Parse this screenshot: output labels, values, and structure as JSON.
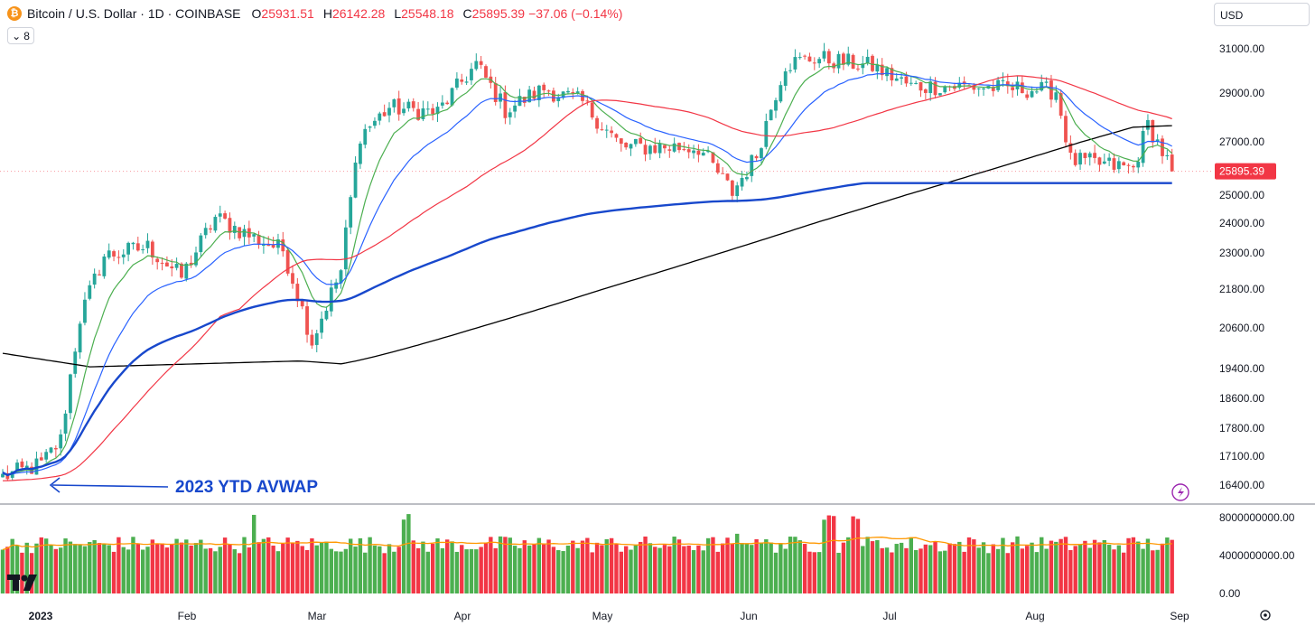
{
  "header": {
    "symbol": "Bitcoin / U.S. Dollar · 1D · COINBASE",
    "coin_glyph": "₿",
    "o_label": "O",
    "o_value": "25931.51",
    "h_label": "H",
    "h_value": "26142.28",
    "l_label": "L",
    "l_value": "25548.18",
    "c_label": "C",
    "c_value": "25895.39",
    "change": "−37.06 (−0.14%)",
    "indicator_count": "8"
  },
  "currency_selector": "USD",
  "annotation": "2023 YTD AVWAP",
  "chart_data": {
    "type": "candlestick",
    "title": "Bitcoin / U.S. Dollar · 1D · COINBASE",
    "price_axis_ticks": [
      "31000.00",
      "29000.00",
      "27000.00",
      "25000.00",
      "24000.00",
      "23000.00",
      "21800.00",
      "20600.00",
      "19400.00",
      "18600.00",
      "17800.00",
      "17100.00",
      "16400.00"
    ],
    "volume_axis_ticks": [
      "8000000000.00",
      "4000000000.00",
      "0.00"
    ],
    "x_tick_labels": [
      "2023",
      "Feb",
      "Mar",
      "Apr",
      "May",
      "Jun",
      "Jul",
      "Aug",
      "Sep"
    ],
    "last_price": "25895.39",
    "last_price_value": 25895.39,
    "candles_anchor_closes": [
      {
        "day": 0,
        "close": 16600
      },
      {
        "day": 8,
        "close": 16900
      },
      {
        "day": 12,
        "close": 17500
      },
      {
        "day": 16,
        "close": 20900
      },
      {
        "day": 21,
        "close": 22900
      },
      {
        "day": 30,
        "close": 23200
      },
      {
        "day": 37,
        "close": 22200
      },
      {
        "day": 44,
        "close": 24200
      },
      {
        "day": 52,
        "close": 23500
      },
      {
        "day": 58,
        "close": 23100
      },
      {
        "day": 64,
        "close": 20200
      },
      {
        "day": 70,
        "close": 22400
      },
      {
        "day": 74,
        "close": 27300
      },
      {
        "day": 80,
        "close": 28400
      },
      {
        "day": 90,
        "close": 28200
      },
      {
        "day": 98,
        "close": 30300
      },
      {
        "day": 104,
        "close": 28300
      },
      {
        "day": 112,
        "close": 29200
      },
      {
        "day": 120,
        "close": 28600
      },
      {
        "day": 128,
        "close": 26800
      },
      {
        "day": 144,
        "close": 26800
      },
      {
        "day": 151,
        "close": 25100
      },
      {
        "day": 156,
        "close": 26500
      },
      {
        "day": 162,
        "close": 30300
      },
      {
        "day": 168,
        "close": 30600
      },
      {
        "day": 180,
        "close": 30200
      },
      {
        "day": 188,
        "close": 29300
      },
      {
        "day": 198,
        "close": 29300
      },
      {
        "day": 210,
        "close": 29200
      },
      {
        "day": 218,
        "close": 29100
      },
      {
        "day": 221,
        "close": 26300
      },
      {
        "day": 234,
        "close": 26000
      },
      {
        "day": 237,
        "close": 27700
      },
      {
        "day": 242,
        "close": 25900
      }
    ],
    "series": [
      {
        "name": "EMA short",
        "color": "#4caf50"
      },
      {
        "name": "EMA medium",
        "color": "#2962ff"
      },
      {
        "name": "SMA 50",
        "color": "#f23645"
      },
      {
        "name": "SMA 200",
        "color": "#000000"
      },
      {
        "name": "2023 YTD AVWAP",
        "color": "#1848cc"
      },
      {
        "name": "Volume MA",
        "color": "#ff9800"
      }
    ],
    "colors": {
      "up": "#26a69a",
      "down": "#ef5350",
      "vol_up": "#4caf50",
      "vol_down": "#f23645"
    }
  }
}
